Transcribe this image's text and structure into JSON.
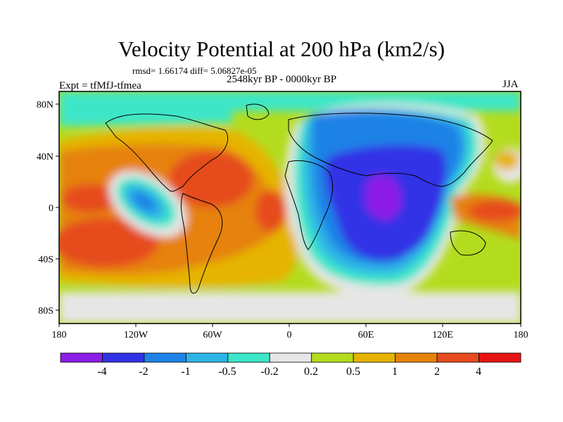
{
  "title": "Velocity Potential at 200 hPa (km2/s)",
  "stats": "rmsd= 1.66174 diff= 5.06827e-05",
  "experiment": "Expt = tfMfJ-tfmea",
  "period": "2548kyr BP - 0000kyr BP",
  "season": "JJA",
  "map": {
    "lon_ticks": [
      "180",
      "120W",
      "60W",
      "0",
      "60E",
      "120E",
      "180"
    ],
    "lat_ticks": [
      "80N",
      "40N",
      "0",
      "40S",
      "80S"
    ]
  },
  "colorbar": {
    "labels": [
      "-4",
      "-2",
      "-1",
      "-0.5",
      "-0.2",
      "0.2",
      "0.5",
      "1",
      "2",
      "4"
    ],
    "colors": [
      "#8c1ee6",
      "#3232e6",
      "#1e82e6",
      "#2db4e6",
      "#3ce6c8",
      "#e6e6e6",
      "#b4dc1e",
      "#e6b400",
      "#e6820a",
      "#e64b1e",
      "#e61414"
    ]
  }
}
